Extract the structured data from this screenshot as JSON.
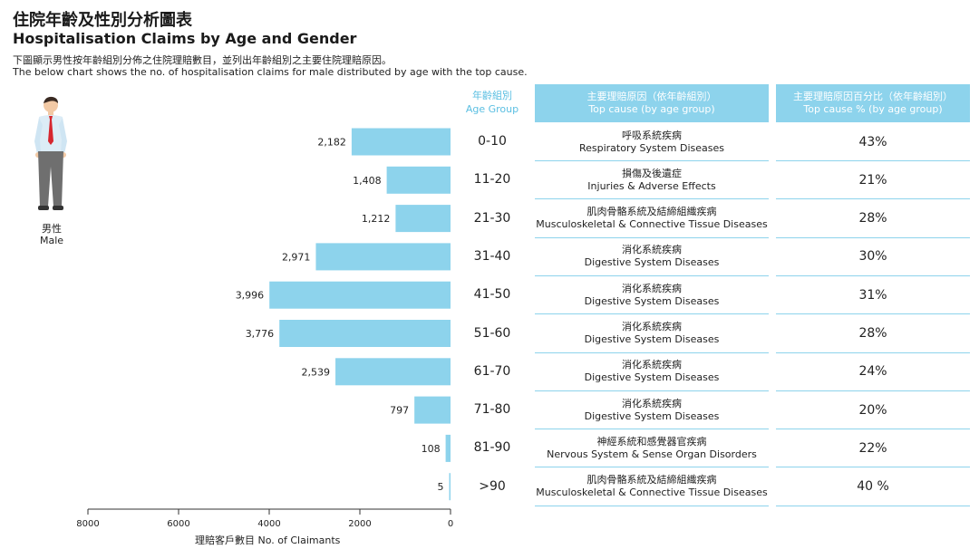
{
  "header": {
    "title_zh": "住院年齡及性別分析圖表",
    "title_en": "Hospitalisation Claims by Age and Gender",
    "subtitle_zh": "下圖顯示男性按年齡組別分佈之住院理賠數目，並列出年齡組別之主要住院理賠原因。",
    "subtitle_en": "The below chart shows the no. of hospitalisation claims for male distributed by age with the top cause."
  },
  "gender": {
    "label_zh": "男性",
    "label_en": "Male"
  },
  "age_header": {
    "zh": "年齡組別",
    "en": "Age Group"
  },
  "table_header": {
    "cause_zh": "主要理賠原因（依年齡組別）",
    "cause_en": "Top cause (by age group)",
    "pct_zh": "主要理賠原因百分比（依年齡組別）",
    "pct_en": "Top cause % (by age group)"
  },
  "rows": [
    {
      "age": "0-10",
      "claims_label": "2,182",
      "cause_zh": "呼吸系統疾病",
      "cause_en": "Respiratory System Diseases",
      "pct": "43%"
    },
    {
      "age": "11-20",
      "claims_label": "1,408",
      "cause_zh": "損傷及後遺症",
      "cause_en": "Injuries & Adverse Effects",
      "pct": "21%"
    },
    {
      "age": "21-30",
      "claims_label": "1,212",
      "cause_zh": "肌肉骨骼系統及結締組織疾病",
      "cause_en": "Musculoskeletal & Connective Tissue Diseases",
      "pct": "28%"
    },
    {
      "age": "31-40",
      "claims_label": "2,971",
      "cause_zh": "消化系統疾病",
      "cause_en": "Digestive System Diseases",
      "pct": "30%"
    },
    {
      "age": "41-50",
      "claims_label": "3,996",
      "cause_zh": "消化系統疾病",
      "cause_en": "Digestive System Diseases",
      "pct": "31%"
    },
    {
      "age": "51-60",
      "claims_label": "3,776",
      "cause_zh": "消化系統疾病",
      "cause_en": "Digestive System Diseases",
      "pct": "28%"
    },
    {
      "age": "61-70",
      "claims_label": "2,539",
      "cause_zh": "消化系統疾病",
      "cause_en": "Digestive System Diseases",
      "pct": "24%"
    },
    {
      "age": "71-80",
      "claims_label": "797",
      "cause_zh": "消化系統疾病",
      "cause_en": "Digestive System Diseases",
      "pct": "20%"
    },
    {
      "age": "81-90",
      "claims_label": "108",
      "cause_zh": "神經系統和感覺器官疾病",
      "cause_en": "Nervous System & Sense Organ Disorders",
      "pct": "22%"
    },
    {
      "age": ">90",
      "claims_label": "5",
      "cause_zh": "肌肉骨骼系統及結締組織疾病",
      "cause_en": "Musculoskeletal & Connective Tissue Diseases",
      "pct": "40 %"
    }
  ],
  "colors": {
    "bar": "#8dd3ec",
    "header_bg": "#8dd3ec",
    "accent_text": "#5bbfe2"
  },
  "chart_data": {
    "type": "bar",
    "orientation": "horizontal",
    "direction": "right-to-left",
    "title": "Hospitalisation Claims by Age and Gender",
    "categories": [
      "0-10",
      "11-20",
      "21-30",
      "31-40",
      "41-50",
      "51-60",
      "61-70",
      "71-80",
      "81-90",
      ">90"
    ],
    "values": [
      2182,
      1408,
      1212,
      2971,
      3996,
      3776,
      2539,
      797,
      108,
      5
    ],
    "xlabel": "理賠客戶數目 No. of Claimants",
    "ylabel": "年齡組別 Age Group",
    "xlim": [
      0,
      8000
    ],
    "xticks": [
      8000,
      6000,
      4000,
      2000,
      0
    ],
    "xtick_labels": [
      "8000",
      "6000",
      "4000",
      "2000",
      "0"
    ],
    "grid": false
  }
}
